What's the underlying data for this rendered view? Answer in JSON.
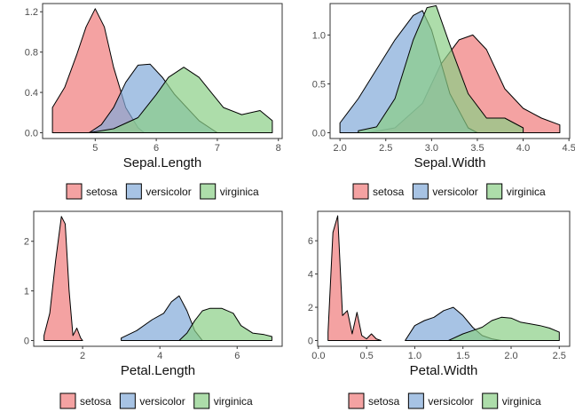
{
  "colors": {
    "setosa": "#F07A7A",
    "versicolor": "#82AAD8",
    "virginica": "#8ACF86"
  },
  "chart_data": [
    {
      "type": "area",
      "title": "",
      "xlabel": "Sepal.Length",
      "ylabel": "",
      "xlim": [
        4.3,
        7.9
      ],
      "ylim": [
        0,
        1.27
      ],
      "xticks": [
        5,
        6,
        7,
        8
      ],
      "yticks": [
        0.0,
        0.4,
        0.8,
        1.2
      ],
      "ytick_labels": [
        "0.0",
        "0.4",
        "0.8",
        "1.2"
      ],
      "grid": false,
      "legend": "bottom",
      "series": [
        {
          "name": "setosa",
          "x": [
            4.3,
            4.5,
            4.7,
            4.85,
            5.0,
            5.15,
            5.3,
            5.5,
            5.7,
            5.8
          ],
          "y": [
            0.25,
            0.45,
            0.78,
            1.05,
            1.23,
            1.05,
            0.65,
            0.25,
            0.05,
            0.0
          ]
        },
        {
          "name": "versicolor",
          "x": [
            4.9,
            5.1,
            5.3,
            5.5,
            5.7,
            5.9,
            6.1,
            6.3,
            6.5,
            6.7,
            6.9,
            7.0
          ],
          "y": [
            0.0,
            0.08,
            0.25,
            0.5,
            0.67,
            0.68,
            0.55,
            0.38,
            0.25,
            0.12,
            0.04,
            0.0
          ]
        },
        {
          "name": "virginica",
          "x": [
            4.9,
            5.3,
            5.7,
            6.0,
            6.2,
            6.45,
            6.7,
            6.9,
            7.1,
            7.4,
            7.7,
            7.9
          ],
          "y": [
            0.0,
            0.04,
            0.15,
            0.38,
            0.55,
            0.65,
            0.55,
            0.4,
            0.25,
            0.18,
            0.22,
            0.12
          ]
        }
      ]
    },
    {
      "type": "area",
      "title": "",
      "xlabel": "Sepal.Width",
      "ylabel": "",
      "xlim": [
        2.0,
        4.4
      ],
      "ylim": [
        0,
        1.31
      ],
      "xticks": [
        2.0,
        2.5,
        3.0,
        3.5,
        4.0,
        4.5
      ],
      "xtick_labels": [
        "2.0",
        "2.5",
        "3.0",
        "3.5",
        "4.0",
        "4.5"
      ],
      "yticks": [
        0.0,
        0.5,
        1.0
      ],
      "ytick_labels": [
        "0.0",
        "0.5",
        "1.0"
      ],
      "grid": false,
      "legend": "bottom",
      "series": [
        {
          "name": "setosa",
          "x": [
            2.3,
            2.6,
            2.9,
            3.1,
            3.3,
            3.45,
            3.6,
            3.8,
            4.0,
            4.2,
            4.4
          ],
          "y": [
            0.0,
            0.05,
            0.3,
            0.7,
            0.95,
            1.0,
            0.85,
            0.45,
            0.25,
            0.15,
            0.08
          ]
        },
        {
          "name": "versicolor",
          "x": [
            2.0,
            2.2,
            2.4,
            2.6,
            2.8,
            2.9,
            3.0,
            3.2,
            3.4,
            3.5
          ],
          "y": [
            0.1,
            0.35,
            0.65,
            0.95,
            1.2,
            1.25,
            1.05,
            0.4,
            0.05,
            0.0
          ]
        },
        {
          "name": "virginica",
          "x": [
            2.2,
            2.4,
            2.6,
            2.8,
            2.95,
            3.05,
            3.2,
            3.4,
            3.6,
            3.8,
            4.0
          ],
          "y": [
            0.02,
            0.06,
            0.35,
            0.95,
            1.28,
            1.3,
            0.9,
            0.4,
            0.15,
            0.15,
            0.05
          ]
        }
      ]
    },
    {
      "type": "area",
      "title": "",
      "xlabel": "Petal.Length",
      "ylabel": "",
      "xlim": [
        1.0,
        6.9
      ],
      "ylim": [
        0,
        2.58
      ],
      "xticks": [
        2,
        4,
        6
      ],
      "yticks": [
        0,
        1,
        2
      ],
      "grid": false,
      "legend": "bottom",
      "series": [
        {
          "name": "setosa",
          "x": [
            1.0,
            1.15,
            1.3,
            1.45,
            1.55,
            1.65,
            1.75,
            1.85,
            1.95,
            2.0
          ],
          "y": [
            0.1,
            0.55,
            1.6,
            2.5,
            2.35,
            1.0,
            0.1,
            0.25,
            0.05,
            0.0
          ]
        },
        {
          "name": "versicolor",
          "x": [
            3.0,
            3.4,
            3.8,
            4.1,
            4.3,
            4.5,
            4.7,
            4.9,
            5.1
          ],
          "y": [
            0.05,
            0.2,
            0.42,
            0.55,
            0.78,
            0.9,
            0.6,
            0.2,
            0.0
          ]
        },
        {
          "name": "virginica",
          "x": [
            4.5,
            4.7,
            4.9,
            5.1,
            5.3,
            5.6,
            5.9,
            6.1,
            6.4,
            6.7,
            6.9
          ],
          "y": [
            0.0,
            0.15,
            0.4,
            0.6,
            0.65,
            0.65,
            0.55,
            0.3,
            0.15,
            0.12,
            0.08
          ]
        }
      ]
    },
    {
      "type": "area",
      "title": "",
      "xlabel": "Petal.Width",
      "ylabel": "",
      "xlim": [
        0.1,
        2.5
      ],
      "ylim": [
        0,
        7.7
      ],
      "xticks": [
        0.0,
        0.5,
        1.0,
        1.5,
        2.0,
        2.5
      ],
      "xtick_labels": [
        "0.0",
        "0.5",
        "1.0",
        "1.5",
        "2.0",
        "2.5"
      ],
      "yticks": [
        0,
        2,
        4,
        6
      ],
      "grid": false,
      "legend": "bottom",
      "series": [
        {
          "name": "setosa",
          "x": [
            0.1,
            0.15,
            0.2,
            0.25,
            0.3,
            0.35,
            0.4,
            0.45,
            0.5,
            0.55,
            0.6,
            0.65
          ],
          "y": [
            0.5,
            6.5,
            7.5,
            1.5,
            1.8,
            0.4,
            1.7,
            0.3,
            0.1,
            0.4,
            0.1,
            0.0
          ]
        },
        {
          "name": "versicolor",
          "x": [
            0.9,
            1.0,
            1.1,
            1.2,
            1.3,
            1.4,
            1.5,
            1.6,
            1.7,
            1.8,
            1.9
          ],
          "y": [
            0.0,
            0.9,
            1.2,
            1.4,
            1.8,
            2.0,
            1.5,
            0.8,
            0.3,
            0.1,
            0.0
          ]
        },
        {
          "name": "virginica",
          "x": [
            1.35,
            1.5,
            1.6,
            1.7,
            1.8,
            1.9,
            2.0,
            2.1,
            2.2,
            2.3,
            2.4,
            2.5
          ],
          "y": [
            0.0,
            0.4,
            0.6,
            0.8,
            1.2,
            1.4,
            1.35,
            1.1,
            1.0,
            0.9,
            0.75,
            0.5
          ]
        }
      ]
    }
  ]
}
